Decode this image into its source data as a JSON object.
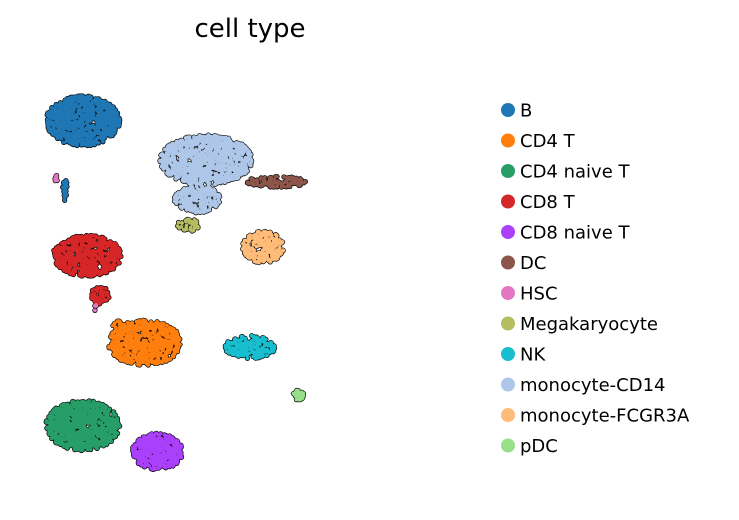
{
  "chart_data": {
    "type": "scatter",
    "title": "cell type",
    "xlabel": "",
    "ylabel": "",
    "grid": false,
    "axes_visible": false,
    "legend_position": "right",
    "xlim": [
      0,
      100
    ],
    "ylim": [
      0,
      100
    ],
    "point_edge_color": "#000000",
    "series": [
      {
        "name": "B",
        "color": "#1f77b4",
        "clusters": [
          {
            "cx": 12,
            "cy": 86,
            "rx": 8,
            "ry": 5.5,
            "n": 900
          },
          {
            "cx": 8,
            "cy": 70,
            "rx": 0.6,
            "ry": 2.5,
            "n": 25
          }
        ]
      },
      {
        "name": "CD4 T",
        "color": "#ff7f0e",
        "clusters": [
          {
            "cx": 26,
            "cy": 35,
            "rx": 8,
            "ry": 5,
            "n": 650
          },
          {
            "cx": 20,
            "cy": 38,
            "rx": 1.5,
            "ry": 2,
            "n": 40
          }
        ]
      },
      {
        "name": "CD4 naive T",
        "color": "#279e68",
        "clusters": [
          {
            "cx": 12,
            "cy": 16,
            "rx": 8,
            "ry": 5.5,
            "n": 850
          }
        ]
      },
      {
        "name": "CD8 T",
        "color": "#d62728",
        "clusters": [
          {
            "cx": 13,
            "cy": 55,
            "rx": 7.5,
            "ry": 4.5,
            "n": 600
          },
          {
            "cx": 16,
            "cy": 46,
            "rx": 2,
            "ry": 2,
            "n": 60
          }
        ]
      },
      {
        "name": "CD8 naive T",
        "color": "#aa40fc",
        "clusters": [
          {
            "cx": 29,
            "cy": 10,
            "rx": 5.5,
            "ry": 4,
            "n": 450
          }
        ]
      },
      {
        "name": "DC",
        "color": "#8c564b",
        "clusters": [
          {
            "cx": 56,
            "cy": 72,
            "rx": 6.5,
            "ry": 1.2,
            "n": 120
          }
        ]
      },
      {
        "name": "HSC",
        "color": "#e377c2",
        "clusters": [
          {
            "cx": 6,
            "cy": 73,
            "rx": 0.5,
            "ry": 1,
            "n": 6
          },
          {
            "cx": 15,
            "cy": 43,
            "rx": 0.5,
            "ry": 0.7,
            "n": 4
          }
        ]
      },
      {
        "name": "Megakaryocyte",
        "color": "#b5bd61",
        "clusters": [
          {
            "cx": 36,
            "cy": 62,
            "rx": 2.5,
            "ry": 1.5,
            "n": 40
          }
        ]
      },
      {
        "name": "NK",
        "color": "#17becf",
        "clusters": [
          {
            "cx": 50,
            "cy": 34,
            "rx": 5.5,
            "ry": 2.5,
            "n": 220
          }
        ]
      },
      {
        "name": "monocyte-CD14",
        "color": "#aec7e8",
        "clusters": [
          {
            "cx": 40,
            "cy": 77,
            "rx": 10,
            "ry": 5.5,
            "n": 1100
          },
          {
            "cx": 38,
            "cy": 68,
            "rx": 5,
            "ry": 3,
            "n": 250
          }
        ]
      },
      {
        "name": "monocyte-FCGR3A",
        "color": "#ffbb78",
        "clusters": [
          {
            "cx": 53,
            "cy": 57,
            "rx": 4.5,
            "ry": 3.5,
            "n": 250
          }
        ]
      },
      {
        "name": "pDC",
        "color": "#98df8a",
        "clusters": [
          {
            "cx": 61,
            "cy": 23,
            "rx": 1.3,
            "ry": 1.3,
            "n": 30
          }
        ]
      }
    ]
  }
}
